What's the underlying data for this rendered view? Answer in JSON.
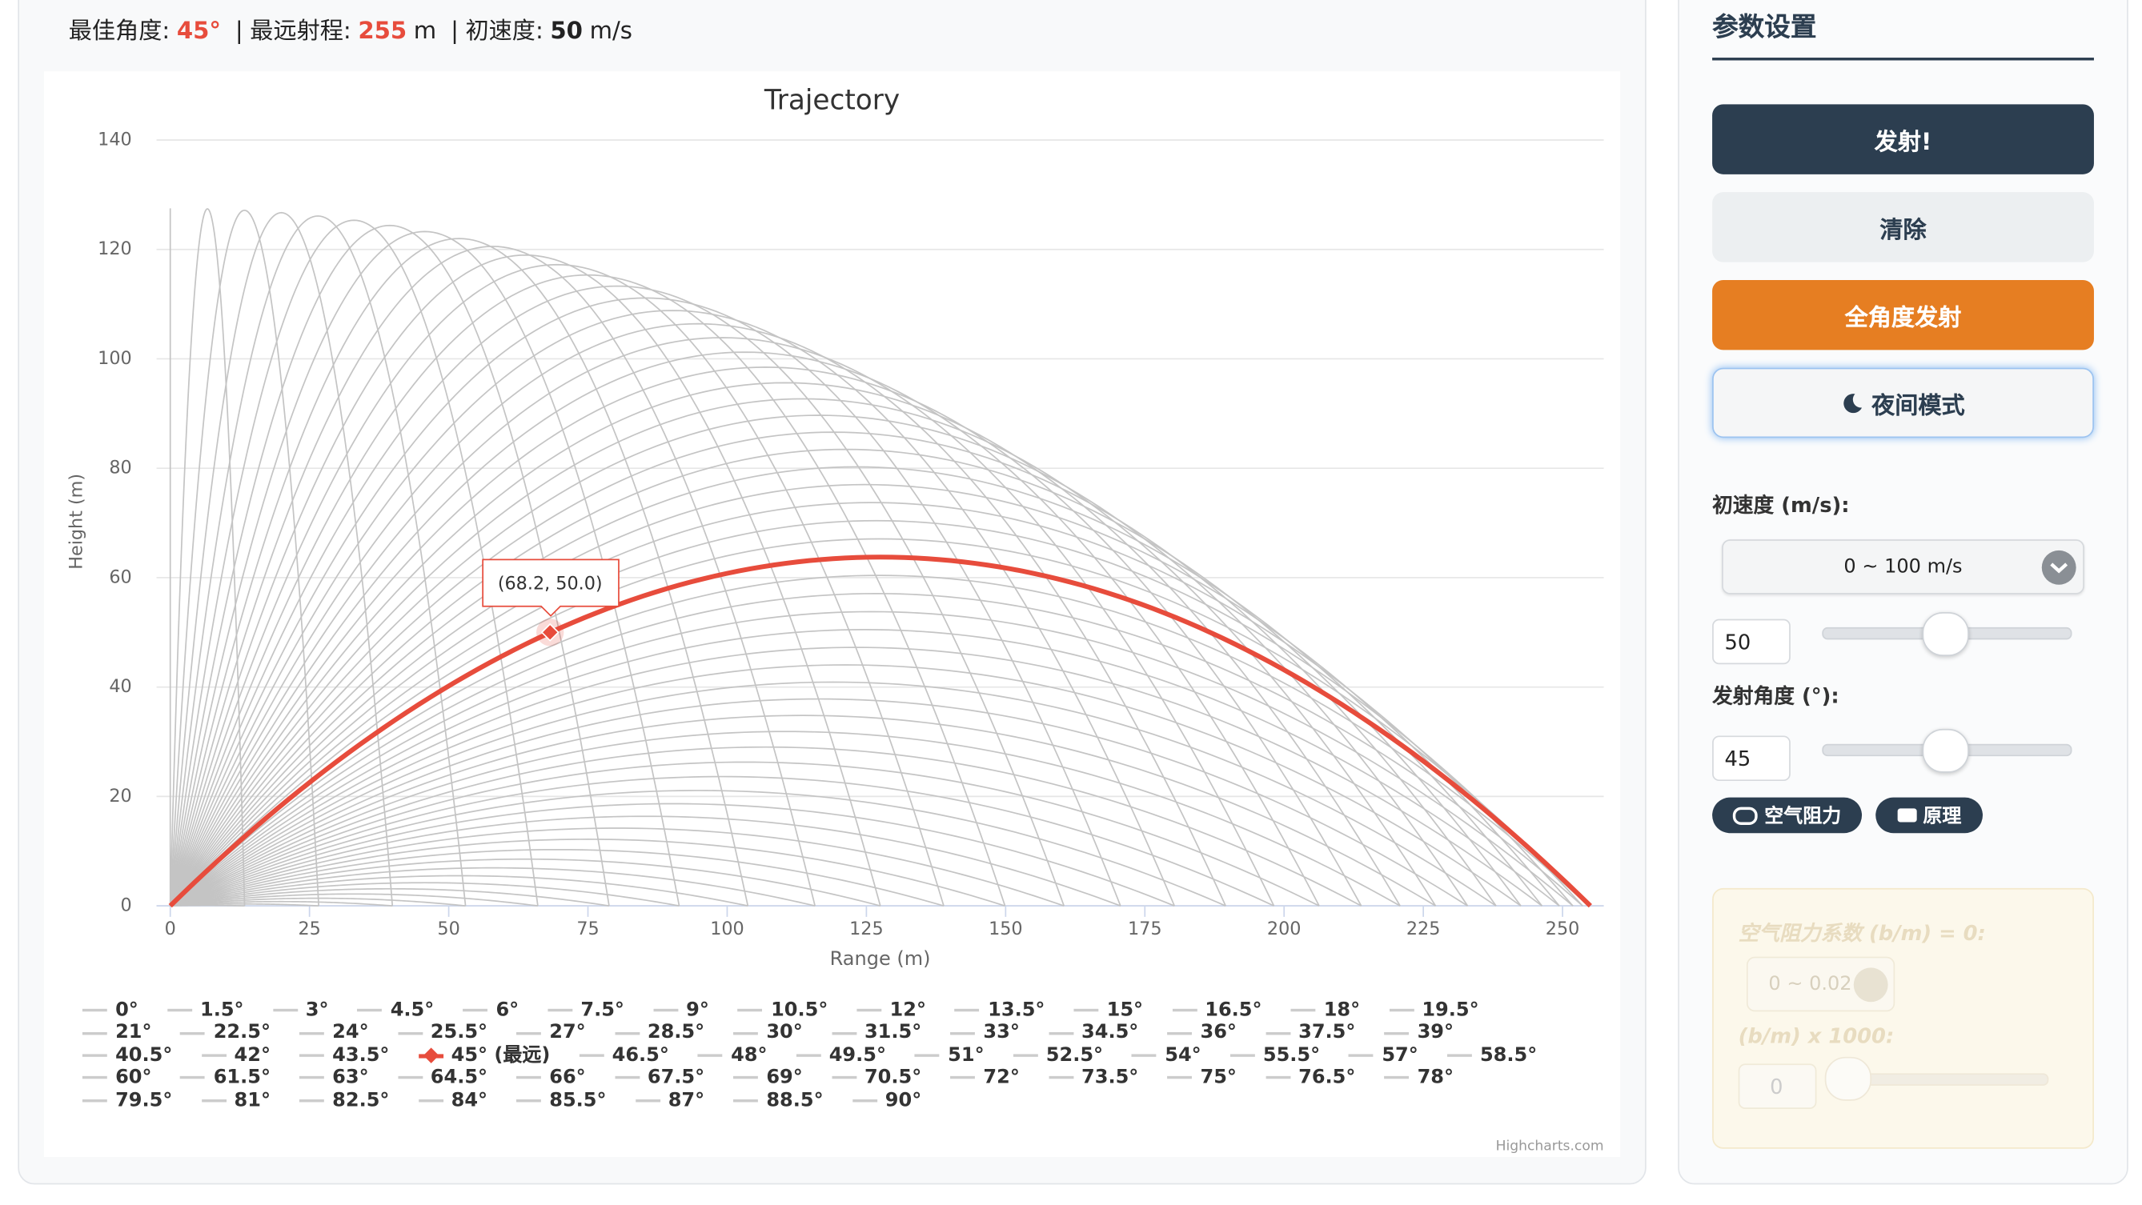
{
  "header": {
    "best_angle_label": "最佳角度:",
    "best_angle": "45°",
    "separator": "|",
    "range_label": "最远射程:",
    "range": 255,
    "range_unit": "m",
    "speed_label": "初速度:",
    "speed": 50,
    "speed_unit": "m/s"
  },
  "chart": {
    "type": "line",
    "title": "Trajectory",
    "x_label": "Range (m)",
    "y_label": "Height (m)",
    "xlim": [
      0,
      257.4
    ],
    "ylim": [
      0,
      140
    ],
    "xticks": [
      0,
      25,
      50,
      75,
      100,
      125,
      150,
      175,
      200,
      225,
      250
    ],
    "yticks": [
      0,
      20,
      40,
      60,
      80,
      100,
      120,
      140
    ],
    "grid": true,
    "color": "#c4c4c4",
    "series": [
      {
        "name": "0°",
        "angle": 0
      },
      {
        "name": "1.5°",
        "angle": 1.5
      },
      {
        "name": "3°",
        "angle": 3
      },
      {
        "name": "4.5°",
        "angle": 4.5
      },
      {
        "name": "6°",
        "angle": 6
      },
      {
        "name": "7.5°",
        "angle": 7.5
      },
      {
        "name": "9°",
        "angle": 9
      },
      {
        "name": "10.5°",
        "angle": 10.5
      },
      {
        "name": "12°",
        "angle": 12
      },
      {
        "name": "13.5°",
        "angle": 13.5
      },
      {
        "name": "15°",
        "angle": 15
      },
      {
        "name": "16.5°",
        "angle": 16.5
      },
      {
        "name": "18°",
        "angle": 18
      },
      {
        "name": "19.5°",
        "angle": 19.5
      },
      {
        "name": "21°",
        "angle": 21
      },
      {
        "name": "22.5°",
        "angle": 22.5
      },
      {
        "name": "24°",
        "angle": 24
      },
      {
        "name": "25.5°",
        "angle": 25.5
      },
      {
        "name": "27°",
        "angle": 27
      },
      {
        "name": "28.5°",
        "angle": 28.5
      },
      {
        "name": "30°",
        "angle": 30
      },
      {
        "name": "31.5°",
        "angle": 31.5
      },
      {
        "name": "33°",
        "angle": 33
      },
      {
        "name": "34.5°",
        "angle": 34.5
      },
      {
        "name": "36°",
        "angle": 36
      },
      {
        "name": "37.5°",
        "angle": 37.5
      },
      {
        "name": "39°",
        "angle": 39
      },
      {
        "name": "40.5°",
        "angle": 40.5
      },
      {
        "name": "42°",
        "angle": 42
      },
      {
        "name": "43.5°",
        "angle": 43.5
      },
      {
        "name": "45° (最远)",
        "angle": 45,
        "color": "#e74c3c"
      },
      {
        "name": "46.5°",
        "angle": 46.5
      },
      {
        "name": "48°",
        "angle": 48
      },
      {
        "name": "49.5°",
        "angle": 49.5
      },
      {
        "name": "51°",
        "angle": 51
      },
      {
        "name": "52.5°",
        "angle": 52.5
      },
      {
        "name": "54°",
        "angle": 54
      },
      {
        "name": "55.5°",
        "angle": 55.5
      },
      {
        "name": "57°",
        "angle": 57
      },
      {
        "name": "58.5°",
        "angle": 58.5
      },
      {
        "name": "60°",
        "angle": 60
      },
      {
        "name": "61.5°",
        "angle": 61.5
      },
      {
        "name": "63°",
        "angle": 63
      },
      {
        "name": "64.5°",
        "angle": 64.5
      },
      {
        "name": "66°",
        "angle": 66
      },
      {
        "name": "67.5°",
        "angle": 67.5
      },
      {
        "name": "69°",
        "angle": 69
      },
      {
        "name": "70.5°",
        "angle": 70.5
      },
      {
        "name": "72°",
        "angle": 72
      },
      {
        "name": "73.5°",
        "angle": 73.5
      },
      {
        "name": "75°",
        "angle": 75
      },
      {
        "name": "76.5°",
        "angle": 76.5
      },
      {
        "name": "78°",
        "angle": 78
      },
      {
        "name": "79.5°",
        "angle": 79.5
      },
      {
        "name": "81°",
        "angle": 81
      },
      {
        "name": "82.5°",
        "angle": 82.5
      },
      {
        "name": "84°",
        "angle": 84
      },
      {
        "name": "85.5°",
        "angle": 85.5
      },
      {
        "name": "87°",
        "angle": 87
      },
      {
        "name": "88.5°",
        "angle": 88.5
      },
      {
        "name": "90°",
        "angle": 90
      }
    ],
    "tooltip": {
      "x": 68.2,
      "y": 50,
      "label": "(68.2, 50.0)"
    },
    "credits": "Highcharts.com"
  },
  "panel": {
    "title": "参数设置",
    "buttons": [
      "发射!",
      "清除",
      "全角度发射",
      "夜间模式"
    ],
    "speed_label": "初速度 (m/s):",
    "speed_range": "0 ~ 100 m/s",
    "speed_value": 50,
    "angle_label": "发射角度 (°):",
    "angle_value": 45,
    "toggles": [
      "空气阻力",
      "原理"
    ],
    "drag": {
      "label": "空气阻力系数 (b/m) = 0:",
      "range": "0 ~ 0.02",
      "factor_label": "(b/m) x 1000:",
      "value": 0
    }
  }
}
